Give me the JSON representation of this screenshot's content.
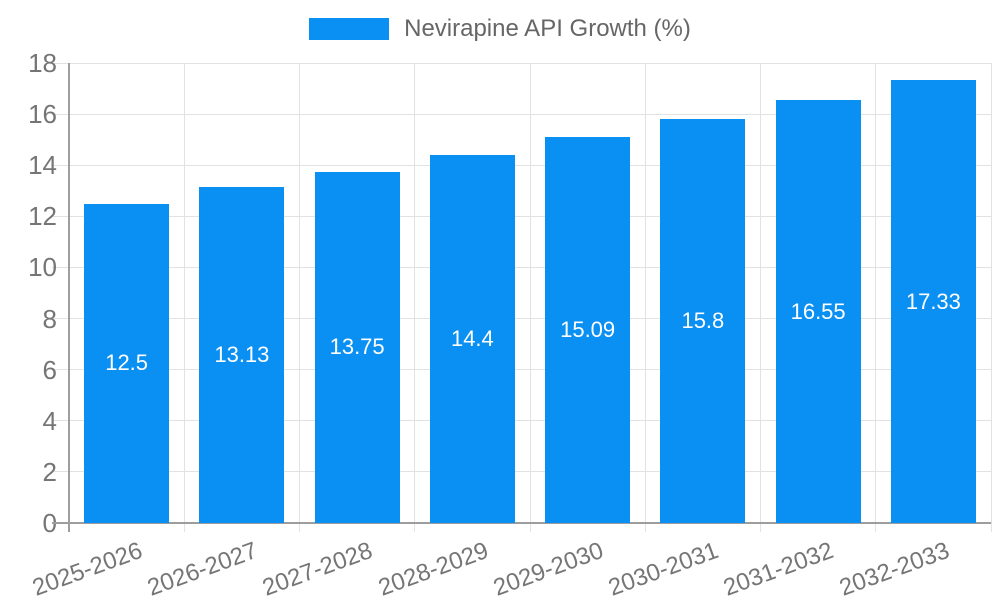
{
  "legend": {
    "label": "Nevirapine API Growth (%)"
  },
  "chart_data": {
    "type": "bar",
    "title": "",
    "legend_entries": [
      "Nevirapine API Growth (%)"
    ],
    "legend_position": "top-center",
    "categories": [
      "2025-2026",
      "2026-2027",
      "2027-2028",
      "2028-2029",
      "2029-2030",
      "2030-2031",
      "2031-2032",
      "2032-2033"
    ],
    "series": [
      {
        "name": "Nevirapine API Growth (%)",
        "values": [
          12.5,
          13.13,
          13.75,
          14.4,
          15.09,
          15.8,
          16.55,
          17.33
        ],
        "value_labels": [
          "12.5",
          "13.13",
          "13.75",
          "14.4",
          "15.09",
          "15.8",
          "16.55",
          "17.33"
        ]
      }
    ],
    "xlabel": "",
    "ylabel": "",
    "ylim": [
      0,
      18
    ],
    "ytick_labels": [
      "0",
      "2",
      "4",
      "6",
      "8",
      "10",
      "12",
      "14",
      "16",
      "18"
    ],
    "grid": true,
    "colors": {
      "bar": "#0a8ff2",
      "bar_value_text": "#ffffff",
      "axis_text": "#757575",
      "legend_text": "#666666",
      "axis_line": "#9e9e9e",
      "gridline": "#e2e2e2"
    }
  }
}
